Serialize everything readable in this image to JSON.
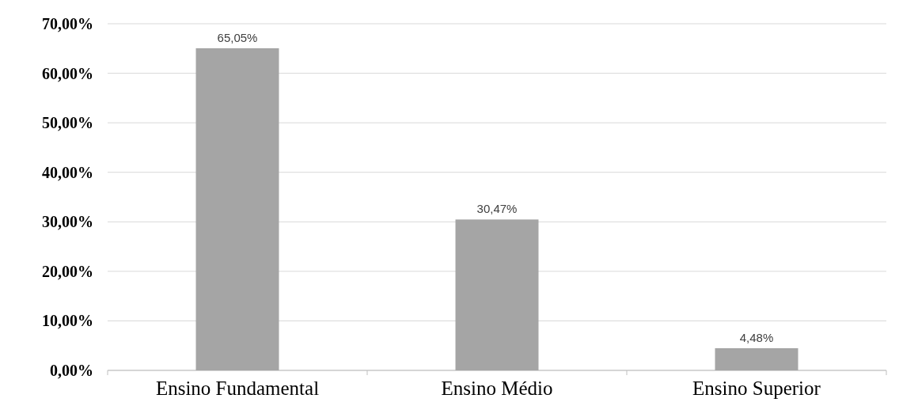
{
  "chart_data": {
    "type": "bar",
    "categories": [
      "Ensino Fundamental",
      "Ensino Médio",
      "Ensino Superior"
    ],
    "values": [
      65.05,
      30.47,
      4.48
    ],
    "value_labels": [
      "65,05%",
      "30,47%",
      "4,48%"
    ],
    "color": "#a5a5a5",
    "ylim": [
      0,
      70
    ],
    "yticks": [
      {
        "value": 0,
        "label": "0,00%"
      },
      {
        "value": 10,
        "label": "10,00%"
      },
      {
        "value": 20,
        "label": "20,00%"
      },
      {
        "value": 30,
        "label": "30,00%"
      },
      {
        "value": 40,
        "label": "40,00%"
      },
      {
        "value": 50,
        "label": "50,00%"
      },
      {
        "value": 60,
        "label": "60,00%"
      },
      {
        "value": 70,
        "label": "70,00%"
      }
    ],
    "grid": "y"
  }
}
